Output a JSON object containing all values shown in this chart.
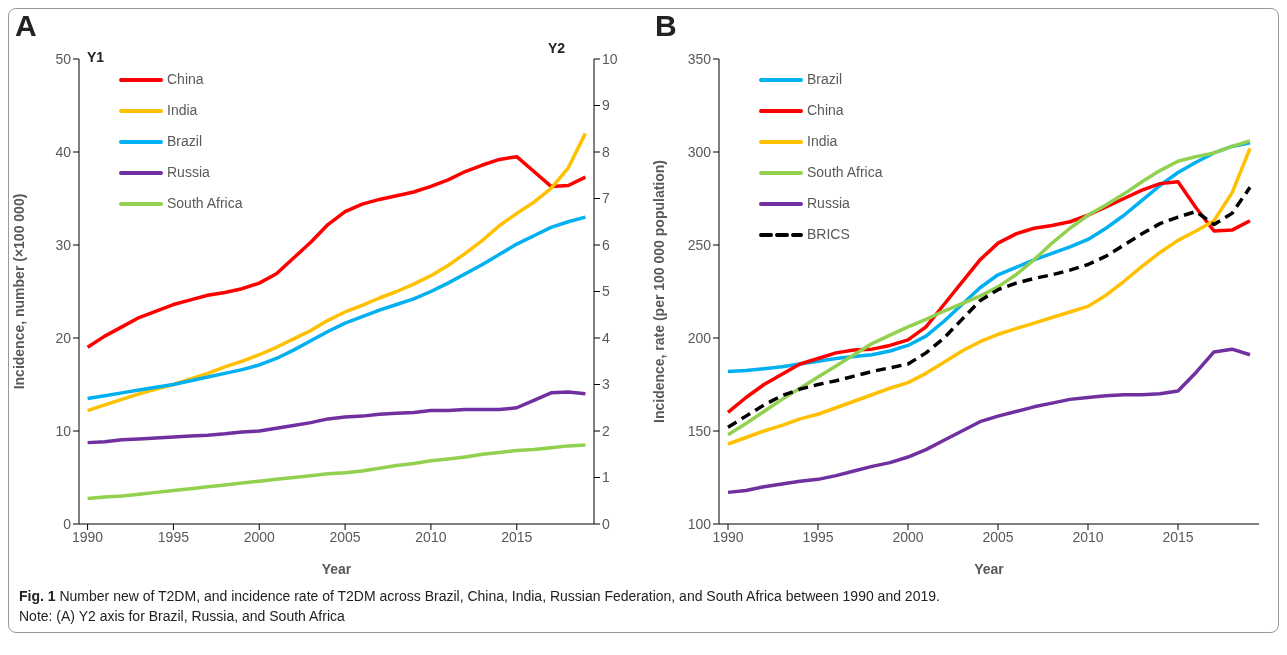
{
  "chart_data": [
    {
      "type": "line",
      "title": "A",
      "ylabel": "Incidence, number (×100 000)",
      "y2label": "Y2",
      "xlabel": "Year",
      "annotations": [
        "Y1"
      ],
      "x": [
        1990,
        1991,
        1992,
        1993,
        1994,
        1995,
        1996,
        1997,
        1998,
        1999,
        2000,
        2001,
        2002,
        2003,
        2004,
        2005,
        2006,
        2007,
        2008,
        2009,
        2010,
        2011,
        2012,
        2013,
        2014,
        2015,
        2016,
        2017,
        2018,
        2019
      ],
      "xlim": [
        1989.5,
        2019.5
      ],
      "xticks": [
        1990,
        1995,
        2000,
        2005,
        2010,
        2015
      ],
      "ylim": [
        0,
        50
      ],
      "yticks": [
        0,
        10,
        20,
        30,
        40,
        50
      ],
      "y2lim": [
        0,
        10
      ],
      "y2ticks": [
        0,
        1,
        2,
        3,
        4,
        5,
        6,
        7,
        8,
        9,
        10
      ],
      "grid": false,
      "legend": "top left",
      "marker": "none",
      "line_style": "solid",
      "series": [
        {
          "name": "China",
          "color": "#ff0000",
          "values": [
            19,
            20.2,
            21.2,
            22.2,
            22.9,
            23.6,
            24.1,
            24.6,
            24.9,
            25.3,
            25.9,
            26.9,
            28.6,
            30.3,
            32.2,
            33.6,
            34.4,
            34.9,
            35.3,
            35.7,
            36.3,
            37,
            37.9,
            38.6,
            39.2,
            39.5,
            37.9,
            36.3,
            36.4,
            37.3
          ]
        },
        {
          "name": "India",
          "color": "#ffc000",
          "values": [
            12.2,
            12.8,
            13.4,
            14,
            14.5,
            15,
            15.6,
            16.2,
            16.9,
            17.5,
            18.2,
            19,
            19.9,
            20.8,
            21.9,
            22.8,
            23.5,
            24.3,
            25,
            25.8,
            26.7,
            27.8,
            29.1,
            30.5,
            32.1,
            33.4,
            34.6,
            36.1,
            38.3,
            42
          ]
        },
        {
          "name": "Brazil",
          "color": "#00b0f0",
          "axis": "y2",
          "values": [
            2.7,
            2.76,
            2.82,
            2.88,
            2.94,
            3,
            3.08,
            3.16,
            3.24,
            3.32,
            3.42,
            3.56,
            3.74,
            3.94,
            4.14,
            4.32,
            4.46,
            4.6,
            4.72,
            4.84,
            5,
            5.18,
            5.38,
            5.58,
            5.8,
            6.02,
            6.2,
            6.38,
            6.5,
            6.6
          ]
        },
        {
          "name": "Russia",
          "color": "#7030a0",
          "axis": "y2",
          "values": [
            1.75,
            1.77,
            1.81,
            1.83,
            1.85,
            1.87,
            1.89,
            1.91,
            1.94,
            1.98,
            2,
            2.06,
            2.12,
            2.18,
            2.26,
            2.3,
            2.32,
            2.36,
            2.38,
            2.4,
            2.44,
            2.44,
            2.46,
            2.46,
            2.46,
            2.5,
            2.66,
            2.82,
            2.84,
            2.8
          ]
        },
        {
          "name": "South Africa",
          "color": "#92d050",
          "axis": "y2",
          "values": [
            0.55,
            0.58,
            0.6,
            0.64,
            0.68,
            0.72,
            0.76,
            0.8,
            0.84,
            0.88,
            0.92,
            0.96,
            1,
            1.04,
            1.08,
            1.1,
            1.14,
            1.2,
            1.26,
            1.3,
            1.36,
            1.4,
            1.44,
            1.5,
            1.54,
            1.58,
            1.6,
            1.64,
            1.68,
            1.7
          ]
        }
      ]
    },
    {
      "type": "line",
      "title": "B",
      "ylabel": "Incidence, rate (per 100 000 population)",
      "xlabel": "Year",
      "annotations": [
        "Fig. 1",
        "Number new of T2DM, and incidence rate of T2DM across Brazil, China, India, Russian Federation, and South Africa between 1990 and 2019.",
        "Note: (A) Y2 axis for Brazil, Russia, and South Africa"
      ],
      "x": [
        1990,
        1991,
        1992,
        1993,
        1994,
        1995,
        1996,
        1997,
        1998,
        1999,
        2000,
        2001,
        2002,
        2003,
        2004,
        2005,
        2006,
        2007,
        2008,
        2009,
        2010,
        2011,
        2012,
        2013,
        2014,
        2015,
        2016,
        2017,
        2018,
        2019
      ],
      "xlim": [
        1989.5,
        2019.5
      ],
      "xticks": [
        1990,
        1995,
        2000,
        2005,
        2010,
        2015
      ],
      "ylim": [
        100,
        350
      ],
      "yticks": [
        100,
        150,
        200,
        250,
        300,
        350
      ],
      "grid": false,
      "legend": "top left",
      "marker": "none",
      "line_style": "solid",
      "series": [
        {
          "name": "Brazil",
          "color": "#00b0f0",
          "values": [
            182,
            182.5,
            183.5,
            184.5,
            186,
            187.5,
            189,
            190,
            191,
            193,
            196,
            201,
            209,
            218,
            227,
            234,
            238,
            242,
            245.5,
            249,
            253,
            259,
            266,
            274,
            282,
            289,
            294.5,
            299.5,
            303,
            305
          ]
        },
        {
          "name": "China",
          "color": "#ff0000",
          "values": [
            160,
            168,
            175,
            180.5,
            186,
            189,
            192,
            193.5,
            194,
            196,
            199,
            206,
            218,
            230,
            242,
            251,
            256,
            259,
            260.5,
            262.5,
            266,
            270.5,
            275,
            279.5,
            283,
            284,
            270,
            257.5,
            258,
            263
          ]
        },
        {
          "name": "India",
          "color": "#ffc000",
          "values": [
            143,
            146.5,
            150,
            153,
            156.5,
            159,
            162.5,
            166,
            169.5,
            173,
            176,
            181,
            187,
            193,
            198,
            202,
            205,
            208,
            211,
            214,
            217,
            223,
            230.5,
            238.5,
            246,
            252.5,
            257.5,
            263,
            278,
            302
          ]
        },
        {
          "name": "South Africa",
          "color": "#92d050",
          "values": [
            148,
            154,
            160.5,
            167,
            173,
            179,
            185,
            191,
            197,
            201.5,
            206,
            210,
            214.5,
            218.5,
            222.5,
            227.5,
            234,
            242,
            251,
            259,
            266,
            271.5,
            277.5,
            284,
            290,
            295,
            297.5,
            299.5,
            303,
            306
          ]
        },
        {
          "name": "Russia",
          "color": "#7030a0",
          "values": [
            117,
            118,
            120,
            121.5,
            123,
            124,
            126,
            128.5,
            131,
            133,
            136,
            140,
            145,
            150,
            155,
            158,
            160.5,
            163,
            165,
            167,
            168,
            169,
            169.5,
            169.5,
            170,
            171.5,
            181.5,
            192.5,
            194,
            191
          ]
        },
        {
          "name": "BRICS",
          "color": "#000000",
          "line_style": "dashed",
          "values": [
            152,
            158,
            164,
            169,
            172.5,
            175,
            177,
            179.5,
            182,
            184,
            186,
            192,
            200,
            210,
            220,
            226,
            229.5,
            232,
            234,
            236.5,
            239.5,
            244,
            250,
            256,
            261.5,
            265,
            268,
            261,
            267,
            281
          ]
        }
      ]
    }
  ]
}
